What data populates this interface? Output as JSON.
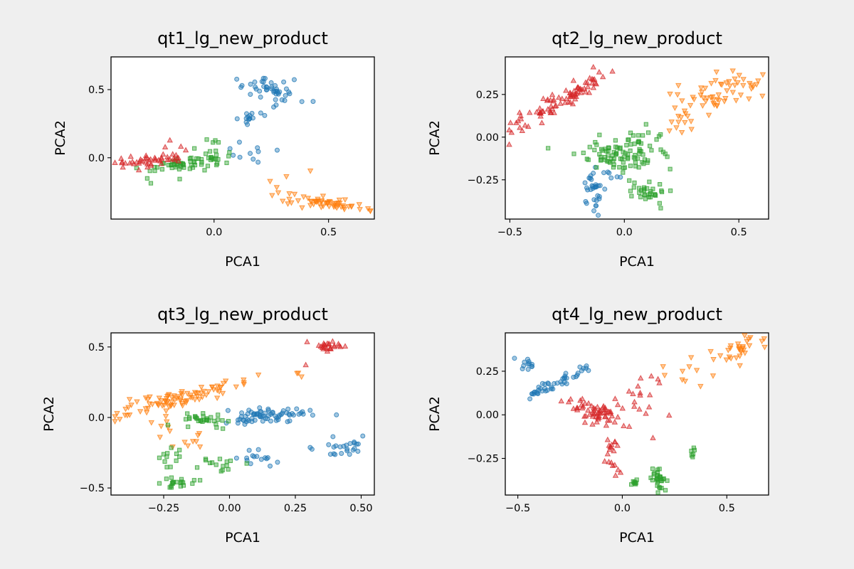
{
  "colors": {
    "background": "#efefef",
    "plot_background": "#ffffff",
    "blue": "#1f77b4",
    "orange": "#ff7f0e",
    "green": "#2ca02c",
    "red": "#d62728"
  },
  "chart_data": [
    {
      "type": "scatter",
      "title": "qt1_lg_new_product",
      "xlabel": "PCA1",
      "ylabel": "PCA2",
      "xlim": [
        -0.45,
        0.7
      ],
      "ylim": [
        -0.45,
        0.74
      ],
      "xticks": [
        {
          "v": 0.0,
          "label": "0.0"
        },
        {
          "v": 0.5,
          "label": "0.5"
        }
      ],
      "yticks": [
        {
          "v": 0.0,
          "label": "0.0"
        },
        {
          "v": 0.5,
          "label": "0.5"
        }
      ],
      "series": [
        {
          "marker": "circle",
          "color": "#1f77b4",
          "clusters": [
            {
              "cx": 0.25,
              "cy": 0.5,
              "sx": 0.04,
              "sy": 0.08,
              "n": 45,
              "angle": 60
            },
            {
              "cx": 0.15,
              "cy": 0.3,
              "sx": 0.03,
              "sy": 0.03,
              "n": 14
            },
            {
              "cx": 0.15,
              "cy": 0.03,
              "sx": 0.05,
              "sy": 0.05,
              "n": 10
            }
          ]
        },
        {
          "marker": "tri-down",
          "color": "#ff7f0e",
          "clusters": [
            {
              "cx": 0.5,
              "cy": -0.33,
              "sx": 0.09,
              "sy": 0.02,
              "n": 55,
              "angle": -10
            },
            {
              "cx": 0.32,
              "cy": -0.22,
              "sx": 0.05,
              "sy": 0.05,
              "n": 6
            },
            {
              "cx": 0.42,
              "cy": -0.1,
              "sx": 0.01,
              "sy": 0.01,
              "n": 1
            }
          ]
        },
        {
          "marker": "square",
          "color": "#2ca02c",
          "clusters": [
            {
              "cx": -0.12,
              "cy": -0.05,
              "sx": 0.1,
              "sy": 0.03,
              "n": 60,
              "angle": 17
            },
            {
              "cx": 0.0,
              "cy": 0.08,
              "sx": 0.05,
              "sy": 0.04,
              "n": 10
            }
          ]
        },
        {
          "marker": "tri-up",
          "color": "#d62728",
          "clusters": [
            {
              "cx": -0.27,
              "cy": -0.02,
              "sx": 0.08,
              "sy": 0.02,
              "n": 45,
              "angle": 8
            },
            {
              "cx": -0.18,
              "cy": 0.1,
              "sx": 0.03,
              "sy": 0.03,
              "n": 4
            }
          ]
        }
      ]
    },
    {
      "type": "scatter",
      "title": "qt2_lg_new_product",
      "xlabel": "PCA1",
      "ylabel": "PCA2",
      "xlim": [
        -0.52,
        0.63
      ],
      "ylim": [
        -0.48,
        0.47
      ],
      "xticks": [
        {
          "v": -0.5,
          "label": "−0.5"
        },
        {
          "v": 0.0,
          "label": "0.0"
        },
        {
          "v": 0.5,
          "label": "0.5"
        }
      ],
      "yticks": [
        {
          "v": -0.25,
          "label": "−0.25"
        },
        {
          "v": 0.0,
          "label": "0.00"
        },
        {
          "v": 0.25,
          "label": "0.25"
        }
      ],
      "series": [
        {
          "marker": "circle",
          "color": "#1f77b4",
          "clusters": [
            {
              "cx": -0.14,
              "cy": -0.33,
              "sx": 0.02,
              "sy": 0.06,
              "n": 30
            },
            {
              "cx": -0.08,
              "cy": -0.22,
              "sx": 0.04,
              "sy": 0.02,
              "n": 8
            }
          ]
        },
        {
          "marker": "tri-down",
          "color": "#ff7f0e",
          "clusters": [
            {
              "cx": 0.4,
              "cy": 0.25,
              "sx": 0.11,
              "sy": 0.05,
              "n": 60,
              "angle": 25
            },
            {
              "cx": 0.24,
              "cy": 0.05,
              "sx": 0.05,
              "sy": 0.04,
              "n": 10
            }
          ]
        },
        {
          "marker": "square",
          "color": "#2ca02c",
          "clusters": [
            {
              "cx": -0.02,
              "cy": -0.1,
              "sx": 0.09,
              "sy": 0.05,
              "n": 90
            },
            {
              "cx": 0.1,
              "cy": -0.32,
              "sx": 0.04,
              "sy": 0.03,
              "n": 30
            },
            {
              "cx": 0.1,
              "cy": 0.0,
              "sx": 0.05,
              "sy": 0.03,
              "n": 12
            }
          ]
        },
        {
          "marker": "tri-up",
          "color": "#d62728",
          "clusters": [
            {
              "cx": -0.3,
              "cy": 0.2,
              "sx": 0.14,
              "sy": 0.025,
              "n": 90,
              "angle": 38
            }
          ]
        }
      ]
    },
    {
      "type": "scatter",
      "title": "qt3_lg_new_product",
      "xlabel": "PCA1",
      "ylabel": "PCA2",
      "xlim": [
        -0.45,
        0.55
      ],
      "ylim": [
        -0.55,
        0.6
      ],
      "xticks": [
        {
          "v": -0.25,
          "label": "−0.25"
        },
        {
          "v": 0.0,
          "label": "0.00"
        },
        {
          "v": 0.25,
          "label": "0.25"
        },
        {
          "v": 0.5,
          "label": "0.50"
        }
      ],
      "yticks": [
        {
          "v": -0.5,
          "label": "−0.5"
        },
        {
          "v": 0.0,
          "label": "0.0"
        },
        {
          "v": 0.5,
          "label": "0.5"
        }
      ],
      "series": [
        {
          "marker": "circle",
          "color": "#1f77b4",
          "clusters": [
            {
              "cx": 0.15,
              "cy": 0.02,
              "sx": 0.08,
              "sy": 0.03,
              "n": 70
            },
            {
              "cx": 0.42,
              "cy": -0.22,
              "sx": 0.06,
              "sy": 0.03,
              "n": 25,
              "angle": 20
            },
            {
              "cx": 0.1,
              "cy": -0.3,
              "sx": 0.06,
              "sy": 0.04,
              "n": 15
            }
          ]
        },
        {
          "marker": "tri-down",
          "color": "#ff7f0e",
          "clusters": [
            {
              "cx": -0.2,
              "cy": 0.13,
              "sx": 0.12,
              "sy": 0.03,
              "n": 90,
              "angle": 25
            },
            {
              "cx": -0.2,
              "cy": -0.15,
              "sx": 0.07,
              "sy": 0.07,
              "n": 15
            },
            {
              "cx": 0.25,
              "cy": 0.3,
              "sx": 0.03,
              "sy": 0.03,
              "n": 3
            }
          ]
        },
        {
          "marker": "square",
          "color": "#2ca02c",
          "clusters": [
            {
              "cx": -0.1,
              "cy": -0.02,
              "sx": 0.05,
              "sy": 0.03,
              "n": 30
            },
            {
              "cx": -0.2,
              "cy": -0.46,
              "sx": 0.04,
              "sy": 0.02,
              "n": 20
            },
            {
              "cx": -0.05,
              "cy": -0.33,
              "sx": 0.04,
              "sy": 0.03,
              "n": 15
            },
            {
              "cx": -0.22,
              "cy": -0.28,
              "sx": 0.02,
              "sy": 0.05,
              "n": 12
            }
          ]
        },
        {
          "marker": "tri-up",
          "color": "#d62728",
          "clusters": [
            {
              "cx": 0.38,
              "cy": 0.5,
              "sx": 0.03,
              "sy": 0.025,
              "n": 25
            },
            {
              "cx": 0.28,
              "cy": 0.37,
              "sx": 0.01,
              "sy": 0.01,
              "n": 1
            }
          ]
        }
      ]
    },
    {
      "type": "scatter",
      "title": "qt4_lg_new_product",
      "xlabel": "PCA1",
      "ylabel": "PCA2",
      "xlim": [
        -0.56,
        0.7
      ],
      "ylim": [
        -0.46,
        0.47
      ],
      "xticks": [
        {
          "v": -0.5,
          "label": "−0.5"
        },
        {
          "v": 0.0,
          "label": "0.0"
        },
        {
          "v": 0.5,
          "label": "0.5"
        }
      ],
      "yticks": [
        {
          "v": -0.25,
          "label": "−0.25"
        },
        {
          "v": 0.0,
          "label": "0.00"
        },
        {
          "v": 0.25,
          "label": "0.25"
        }
      ],
      "series": [
        {
          "marker": "circle",
          "color": "#1f77b4",
          "clusters": [
            {
              "cx": -0.32,
              "cy": 0.18,
              "sx": 0.1,
              "sy": 0.015,
              "n": 45,
              "angle": 30
            },
            {
              "cx": -0.46,
              "cy": 0.29,
              "sx": 0.02,
              "sy": 0.015,
              "n": 12
            }
          ]
        },
        {
          "marker": "tri-down",
          "color": "#ff7f0e",
          "clusters": [
            {
              "cx": 0.55,
              "cy": 0.38,
              "sx": 0.07,
              "sy": 0.03,
              "n": 30,
              "angle": 35
            },
            {
              "cx": 0.35,
              "cy": 0.24,
              "sx": 0.05,
              "sy": 0.05,
              "n": 8
            },
            {
              "cx": 0.2,
              "cy": 0.25,
              "sx": 0.02,
              "sy": 0.02,
              "n": 2
            }
          ]
        },
        {
          "marker": "square",
          "color": "#2ca02c",
          "clusters": [
            {
              "cx": 0.18,
              "cy": -0.37,
              "sx": 0.02,
              "sy": 0.03,
              "n": 30
            },
            {
              "cx": 0.06,
              "cy": -0.39,
              "sx": 0.01,
              "sy": 0.01,
              "n": 8
            },
            {
              "cx": 0.34,
              "cy": -0.22,
              "sx": 0.005,
              "sy": 0.02,
              "n": 6
            }
          ]
        },
        {
          "marker": "tri-up",
          "color": "#d62728",
          "clusters": [
            {
              "cx": -0.12,
              "cy": 0.0,
              "sx": 0.07,
              "sy": 0.03,
              "n": 60,
              "angle": -25
            },
            {
              "cx": -0.05,
              "cy": -0.2,
              "sx": 0.02,
              "sy": 0.07,
              "n": 20
            },
            {
              "cx": 0.1,
              "cy": 0.1,
              "sx": 0.06,
              "sy": 0.08,
              "n": 20
            }
          ]
        }
      ]
    }
  ]
}
